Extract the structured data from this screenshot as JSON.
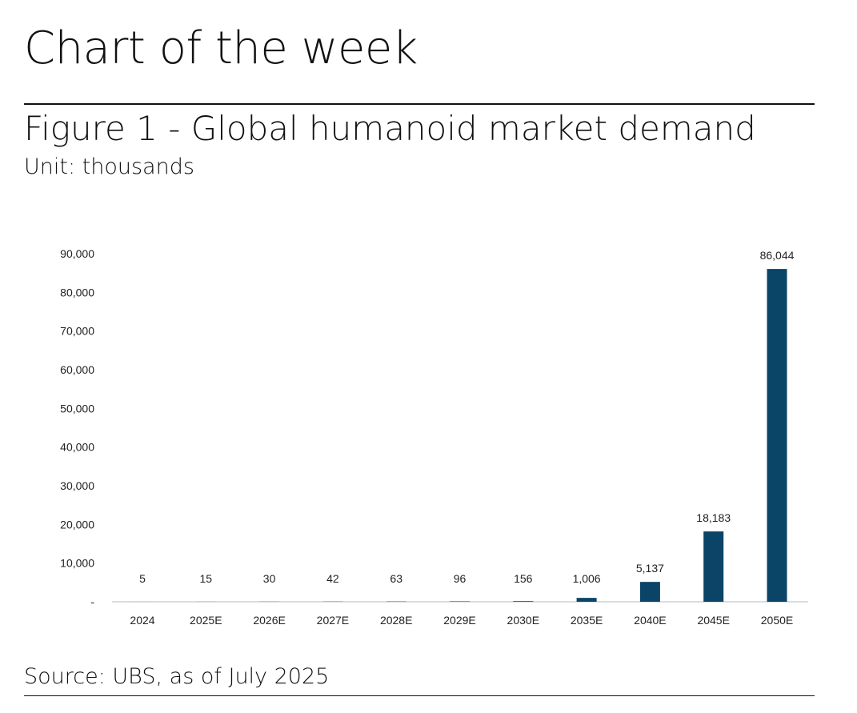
{
  "header": {
    "title": "Chart of the week",
    "figure_title": "Figure 1 - Global humanoid market demand",
    "unit": "Unit: thousands",
    "source": "Source: UBS, as of July 2025"
  },
  "colors": {
    "bar": "#0a4466",
    "axis": "#c8d3da"
  },
  "chart_data": {
    "type": "bar",
    "title": "Figure 1 - Global humanoid market demand",
    "ylabel": "Unit: thousands",
    "xlabel": "",
    "categories": [
      "2024",
      "2025E",
      "2026E",
      "2027E",
      "2028E",
      "2029E",
      "2030E",
      "2035E",
      "2040E",
      "2045E",
      "2050E"
    ],
    "values": [
      5,
      15,
      30,
      42,
      63,
      96,
      156,
      1006,
      5137,
      18183,
      86044
    ],
    "data_labels": [
      "5",
      "15",
      "30",
      "42",
      "63",
      "96",
      "156",
      "1,006",
      "5,137",
      "18,183",
      "86,044"
    ],
    "ylim": [
      0,
      90000
    ],
    "yticks": [
      0,
      10000,
      20000,
      30000,
      40000,
      50000,
      60000,
      70000,
      80000,
      90000
    ],
    "ytick_labels": [
      "-",
      "10,000",
      "20,000",
      "30,000",
      "40,000",
      "50,000",
      "60,000",
      "70,000",
      "80,000",
      "90,000"
    ],
    "grid": false,
    "legend": "none"
  }
}
